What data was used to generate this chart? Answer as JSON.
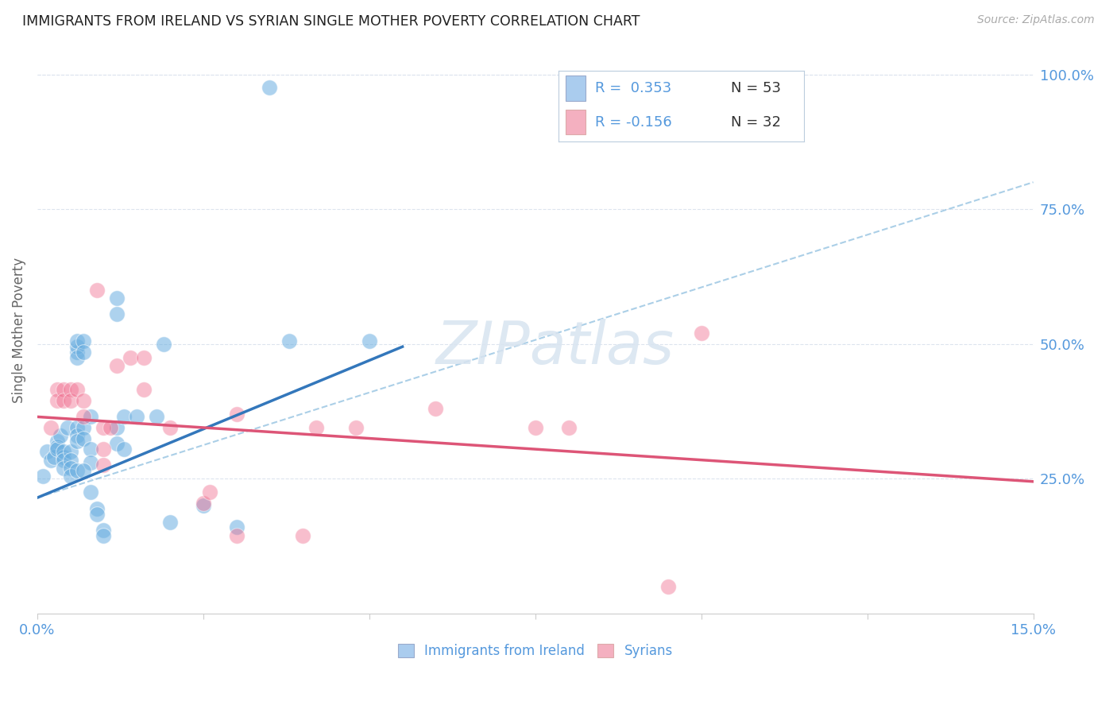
{
  "title": "IMMIGRANTS FROM IRELAND VS SYRIAN SINGLE MOTHER POVERTY CORRELATION CHART",
  "source": "Source: ZipAtlas.com",
  "ylabel": "Single Mother Poverty",
  "ytick_labels": [
    "100.0%",
    "75.0%",
    "50.0%",
    "25.0%"
  ],
  "ytick_values": [
    1.0,
    0.75,
    0.5,
    0.25
  ],
  "x_min": 0.0,
  "x_max": 0.15,
  "y_min": 0.0,
  "y_max": 1.05,
  "watermark": "ZIPatlas",
  "blue_color": "#6aaee0",
  "pink_color": "#f07090",
  "blue_dots": [
    [
      0.0008,
      0.255
    ],
    [
      0.0015,
      0.3
    ],
    [
      0.002,
      0.285
    ],
    [
      0.0025,
      0.29
    ],
    [
      0.003,
      0.32
    ],
    [
      0.003,
      0.31
    ],
    [
      0.003,
      0.305
    ],
    [
      0.0035,
      0.33
    ],
    [
      0.004,
      0.29
    ],
    [
      0.004,
      0.3
    ],
    [
      0.004,
      0.285
    ],
    [
      0.004,
      0.27
    ],
    [
      0.0045,
      0.345
    ],
    [
      0.005,
      0.3
    ],
    [
      0.005,
      0.285
    ],
    [
      0.005,
      0.27
    ],
    [
      0.005,
      0.255
    ],
    [
      0.006,
      0.485
    ],
    [
      0.006,
      0.495
    ],
    [
      0.006,
      0.505
    ],
    [
      0.006,
      0.475
    ],
    [
      0.006,
      0.345
    ],
    [
      0.006,
      0.33
    ],
    [
      0.006,
      0.32
    ],
    [
      0.007,
      0.505
    ],
    [
      0.007,
      0.485
    ],
    [
      0.007,
      0.345
    ],
    [
      0.007,
      0.325
    ],
    [
      0.008,
      0.365
    ],
    [
      0.008,
      0.305
    ],
    [
      0.008,
      0.28
    ],
    [
      0.008,
      0.225
    ],
    [
      0.009,
      0.195
    ],
    [
      0.009,
      0.185
    ],
    [
      0.01,
      0.155
    ],
    [
      0.01,
      0.145
    ],
    [
      0.012,
      0.585
    ],
    [
      0.012,
      0.555
    ],
    [
      0.012,
      0.345
    ],
    [
      0.012,
      0.315
    ],
    [
      0.013,
      0.365
    ],
    [
      0.013,
      0.305
    ],
    [
      0.015,
      0.365
    ],
    [
      0.018,
      0.365
    ],
    [
      0.019,
      0.5
    ],
    [
      0.02,
      0.17
    ],
    [
      0.025,
      0.2
    ],
    [
      0.03,
      0.16
    ],
    [
      0.038,
      0.505
    ],
    [
      0.05,
      0.505
    ],
    [
      0.035,
      0.975
    ],
    [
      0.006,
      0.265
    ],
    [
      0.007,
      0.265
    ]
  ],
  "pink_dots": [
    [
      0.002,
      0.345
    ],
    [
      0.003,
      0.415
    ],
    [
      0.003,
      0.395
    ],
    [
      0.004,
      0.415
    ],
    [
      0.004,
      0.395
    ],
    [
      0.005,
      0.415
    ],
    [
      0.005,
      0.395
    ],
    [
      0.006,
      0.415
    ],
    [
      0.007,
      0.395
    ],
    [
      0.007,
      0.365
    ],
    [
      0.009,
      0.6
    ],
    [
      0.01,
      0.345
    ],
    [
      0.01,
      0.305
    ],
    [
      0.01,
      0.275
    ],
    [
      0.011,
      0.345
    ],
    [
      0.012,
      0.46
    ],
    [
      0.014,
      0.475
    ],
    [
      0.016,
      0.475
    ],
    [
      0.016,
      0.415
    ],
    [
      0.02,
      0.345
    ],
    [
      0.025,
      0.205
    ],
    [
      0.026,
      0.225
    ],
    [
      0.03,
      0.37
    ],
    [
      0.03,
      0.145
    ],
    [
      0.04,
      0.145
    ],
    [
      0.042,
      0.345
    ],
    [
      0.048,
      0.345
    ],
    [
      0.06,
      0.38
    ],
    [
      0.075,
      0.345
    ],
    [
      0.08,
      0.345
    ],
    [
      0.095,
      0.05
    ],
    [
      0.1,
      0.52
    ]
  ],
  "blue_line_x": [
    0.0,
    0.055
  ],
  "blue_line_y": [
    0.215,
    0.495
  ],
  "pink_line_x": [
    0.0,
    0.15
  ],
  "pink_line_y": [
    0.365,
    0.245
  ],
  "dashed_line_x": [
    0.0,
    0.15
  ],
  "dashed_line_y": [
    0.215,
    0.8
  ],
  "background_color": "#ffffff",
  "grid_color": "#dde4ee",
  "title_color": "#222222",
  "axis_label_color": "#666666",
  "ytick_color": "#5599dd",
  "xtick_color": "#5599dd",
  "legend_blue_color": "#aaccee",
  "legend_pink_color": "#f4b0c0"
}
